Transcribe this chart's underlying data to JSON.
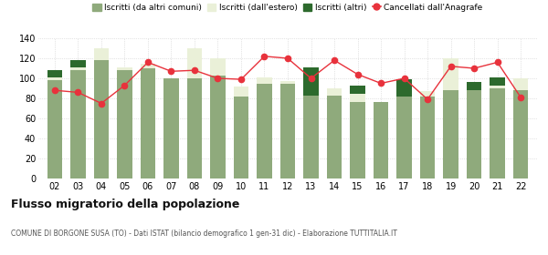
{
  "years": [
    "02",
    "03",
    "04",
    "05",
    "06",
    "07",
    "08",
    "09",
    "10",
    "11",
    "12",
    "13",
    "14",
    "15",
    "16",
    "17",
    "18",
    "19",
    "20",
    "21",
    "22"
  ],
  "iscritti_comuni": [
    98,
    108,
    118,
    108,
    110,
    100,
    100,
    103,
    82,
    95,
    95,
    83,
    83,
    76,
    76,
    82,
    82,
    88,
    88,
    90,
    88
  ],
  "iscritti_estero": [
    3,
    3,
    12,
    3,
    5,
    0,
    30,
    17,
    10,
    6,
    2,
    0,
    7,
    9,
    0,
    0,
    5,
    32,
    0,
    3,
    12
  ],
  "iscritti_altri": [
    7,
    7,
    0,
    0,
    0,
    0,
    0,
    0,
    0,
    0,
    0,
    28,
    0,
    8,
    0,
    17,
    0,
    0,
    8,
    8,
    0
  ],
  "cancellati": [
    88,
    86,
    75,
    93,
    116,
    107,
    108,
    100,
    99,
    122,
    120,
    100,
    118,
    104,
    95,
    100,
    79,
    112,
    110,
    116,
    81
  ],
  "color_comuni": "#8faa7c",
  "color_estero": "#eaf0d8",
  "color_altri": "#2d6a2d",
  "color_cancellati": "#e8323c",
  "ylabel_max": 140,
  "ylabel_min": 0,
  "ylabel_step": 20,
  "title": "Flusso migratorio della popolazione",
  "subtitle": "COMUNE DI BORGONE SUSA (TO) - Dati ISTAT (bilancio demografico 1 gen-31 dic) - Elaborazione TUTTITALIA.IT",
  "legend_labels": [
    "Iscritti (da altri comuni)",
    "Iscritti (dall'estero)",
    "Iscritti (altri)",
    "Cancellati dall'Anagrafe"
  ],
  "bg_color": "#ffffff"
}
